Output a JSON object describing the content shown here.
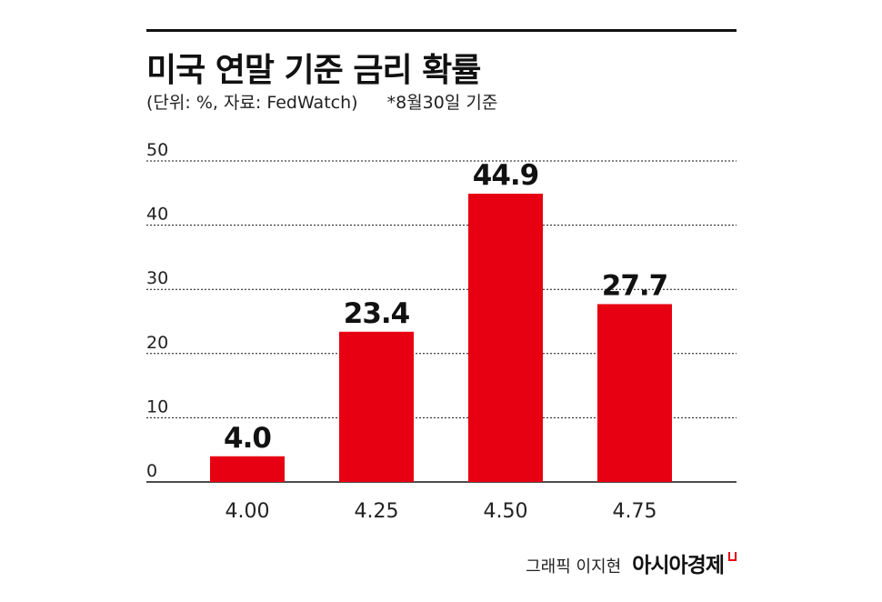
{
  "title": "미국 연말 기준 금리 확률",
  "subtitle": "(단위: %, 자료: FedWatch)",
  "note": "*8월30일 기준",
  "credit": {
    "graphic": "그래픽 이지현",
    "brand": "아시아경제"
  },
  "colors": {
    "bar": "#e60012",
    "grid": "#111111",
    "text": "#111111"
  },
  "chart_data": {
    "type": "bar",
    "categories": [
      "4.00",
      "4.25",
      "4.50",
      "4.75"
    ],
    "values": [
      4.0,
      23.4,
      44.9,
      27.7
    ],
    "value_labels": [
      "4.0",
      "23.4",
      "44.9",
      "27.7"
    ],
    "ylim": [
      0,
      50
    ],
    "yticks": [
      0,
      10,
      20,
      30,
      40,
      50
    ],
    "grid": true,
    "title": "미국 연말 기준 금리 확률",
    "xlabel": "",
    "ylabel": ""
  }
}
